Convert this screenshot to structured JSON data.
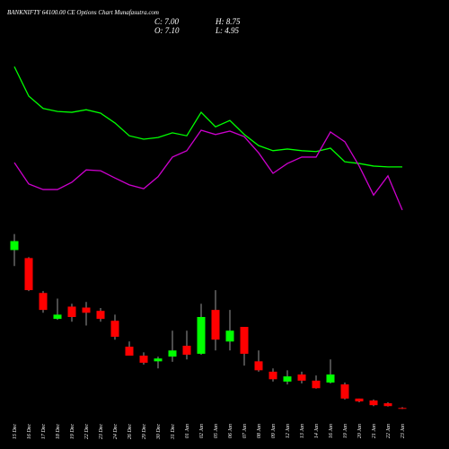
{
  "chart_data": {
    "type": "candlestick",
    "title": "BANKNIFTY 64100.00 CE Options Chart Munafasutra.com",
    "ohlc_labels": {
      "close": "C: 7.00",
      "high": "H: 8.75",
      "open": "O: 7.10",
      "low": "L: 4.95"
    },
    "categories": [
      "15 Dec",
      "16 Dec",
      "17 Dec",
      "18 Dec",
      "19 Dec",
      "22 Dec",
      "23 Dec",
      "24 Dec",
      "26 Dec",
      "29 Dec",
      "30 Dec",
      "31 Dec",
      "01 Jan",
      "02 Jan",
      "05 Jan",
      "06 Jan",
      "07 Jan",
      "08 Jan",
      "09 Jan",
      "12 Jan",
      "13 Jan",
      "14 Jan",
      "16 Jan",
      "19 Jan",
      "20 Jan",
      "21 Jan",
      "22 Jan",
      "23 Jan"
    ],
    "open": [
      342,
      325,
      251,
      196,
      222,
      220,
      213,
      192,
      137,
      118,
      106,
      116,
      139,
      122,
      215,
      148,
      179,
      106,
      84,
      63,
      78,
      65,
      61,
      57,
      27,
      23,
      17,
      7.1
    ],
    "high": [
      376,
      327,
      255,
      239,
      228,
      232,
      219,
      205,
      148,
      125,
      116,
      171,
      171,
      228,
      257,
      215,
      179,
      129,
      91,
      87,
      84,
      76,
      110,
      61,
      27,
      25,
      19,
      8.75
    ],
    "low": [
      308,
      255,
      209,
      194,
      190,
      182,
      190,
      152,
      118,
      99,
      91,
      105,
      110,
      120,
      129,
      129,
      97,
      84,
      63,
      57,
      59,
      48,
      59,
      25,
      19,
      11,
      10,
      4.95
    ],
    "close": [
      361,
      257,
      215,
      205,
      200,
      209,
      196,
      158,
      118,
      103,
      112,
      129,
      120,
      200,
      152,
      171,
      122,
      87,
      68,
      74,
      65,
      49,
      78,
      27,
      21,
      13,
      11,
      7
    ],
    "up_color": "#00ff00",
    "down_color": "#ff0000",
    "ylim": [
      0,
      400
    ],
    "lines": [
      {
        "color": "#00ff00",
        "values": [
          370,
          301,
          272,
          265,
          263,
          269,
          261,
          238,
          208,
          200,
          204,
          215,
          208,
          263,
          229,
          244,
          211,
          185,
          173,
          177,
          173,
          171,
          179,
          147,
          143,
          137,
          135,
          135
        ]
      },
      {
        "color": "#cc00cc",
        "values": [
          145,
          95,
          82,
          82,
          99,
          128,
          126,
          109,
          93,
          84,
          112,
          158,
          173,
          221,
          211,
          219,
          206,
          168,
          120,
          143,
          158,
          158,
          217,
          194,
          137,
          69,
          114,
          34
        ]
      }
    ],
    "lines_ylim": [
      0,
      400
    ]
  }
}
